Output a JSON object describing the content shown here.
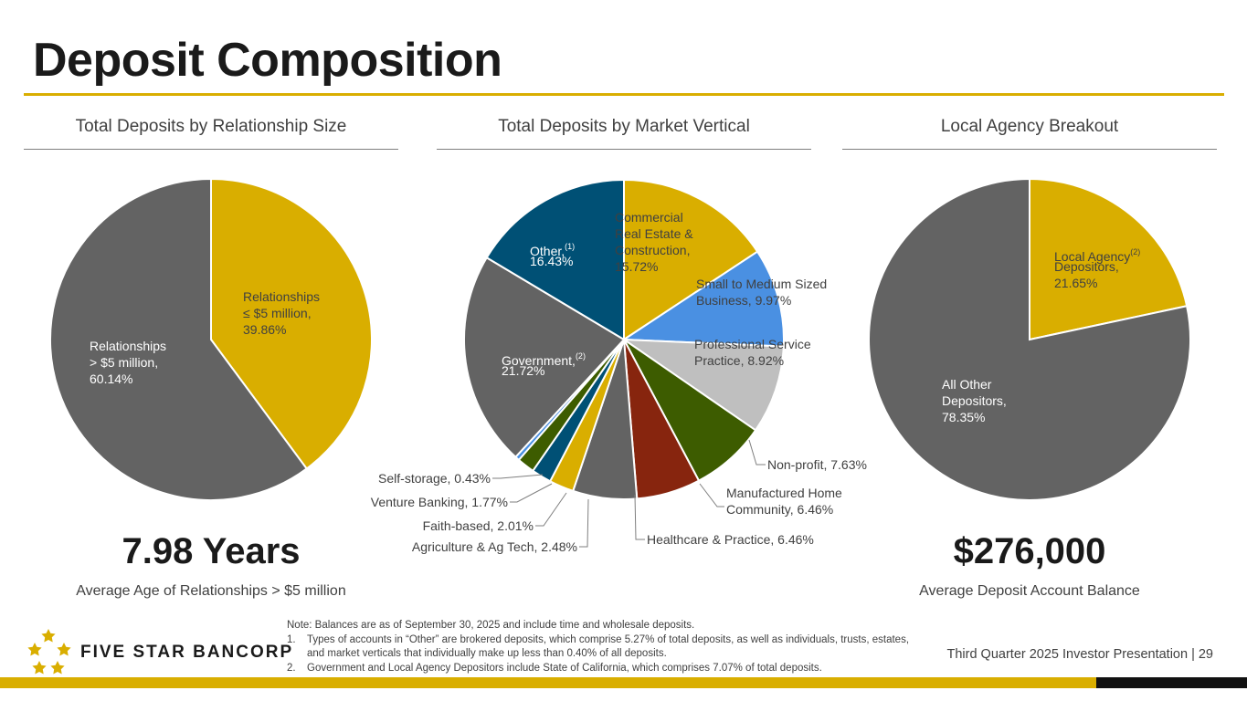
{
  "page": {
    "title": "Deposit Composition",
    "footer": "Third Quarter 2025 Investor Presentation | 29"
  },
  "colors": {
    "gold": "#d9ae00",
    "gray": "#636363",
    "navy": "#005075",
    "blue": "#4a90e2",
    "light_gray": "#bfbfbf",
    "green": "#3d5c00",
    "rust": "#87250e",
    "mid_gray": "#636363"
  },
  "logo": {
    "text": "FIVE STAR BANCORP",
    "icon": "five-stars-icon"
  },
  "notes": {
    "intro": "Note: Balances are as of September 30, 2025 and include time and wholesale deposits.",
    "items": [
      {
        "num": "1.",
        "text": "Types of accounts in “Other” are brokered deposits, which comprise 5.27% of total deposits, as well as individuals, trusts, estates, and market verticals that individually make up less than 0.40% of all deposits."
      },
      {
        "num": "2.",
        "text": "Government and Local Agency Depositors include State of California, which comprises 7.07% of total deposits."
      }
    ]
  },
  "sections": {
    "relationship": {
      "title": "Total Deposits by Relationship Size",
      "metric": "7.98 Years",
      "metric_label": "Average Age of Relationships > $5 million"
    },
    "vertical": {
      "title": "Total Deposits by Market Vertical"
    },
    "agency": {
      "title": "Local Agency Breakout",
      "metric": "$276,000",
      "metric_label": "Average Deposit Account Balance"
    }
  },
  "chart_data": [
    {
      "type": "pie",
      "title": "Total Deposits by Relationship Size",
      "unit": "%",
      "slices": [
        {
          "lines": [
            "Relationships",
            "≤ $5 million,",
            "39.86%"
          ],
          "value": 39.86,
          "color": "#d9ae00"
        },
        {
          "lines": [
            "Relationships",
            "> $5 million,",
            "60.14%"
          ],
          "value": 60.14,
          "color": "#636363"
        }
      ]
    },
    {
      "type": "pie",
      "title": "Total Deposits by Market Vertical",
      "unit": "%",
      "slices": [
        {
          "lines": [
            "Commercial",
            "Real Estate &",
            "Construction,",
            "15.72%"
          ],
          "value": 15.72,
          "color": "#d9ae00"
        },
        {
          "lines": [
            "Small to Medium Sized",
            "Business, 9.97%"
          ],
          "value": 9.97,
          "color": "#4a90e2"
        },
        {
          "lines": [
            "Professional Service",
            "Practice, 8.92%"
          ],
          "value": 8.92,
          "color": "#bfbfbf"
        },
        {
          "lines": [
            "Non-profit, 7.63%"
          ],
          "value": 7.63,
          "color": "#3d5c00"
        },
        {
          "lines": [
            "Manufactured Home",
            "Community, 6.46%"
          ],
          "value": 6.46,
          "color": "#87250e"
        },
        {
          "lines": [
            "Healthcare & Practice, 6.46%"
          ],
          "value": 6.46,
          "color": "#636363"
        },
        {
          "lines": [
            "Agriculture & Ag Tech, 2.48%"
          ],
          "value": 2.48,
          "color": "#d9ae00"
        },
        {
          "lines": [
            "Faith-based, 2.01%"
          ],
          "value": 2.01,
          "color": "#005075"
        },
        {
          "lines": [
            "Venture Banking, 1.77%"
          ],
          "value": 1.77,
          "color": "#3d5c00"
        },
        {
          "lines": [
            "Self-storage, 0.43%"
          ],
          "value": 0.43,
          "color": "#4a90e2"
        },
        {
          "lines": [
            "Government,",
            "21.72%"
          ],
          "sup": "(2)",
          "value": 21.72,
          "color": "#636363"
        },
        {
          "lines": [
            "Other,",
            "16.43%"
          ],
          "sup": "(1)",
          "value": 16.43,
          "color": "#005075"
        }
      ]
    },
    {
      "type": "pie",
      "title": "Local Agency Breakout",
      "unit": "%",
      "slices": [
        {
          "lines": [
            "Local Agency",
            "Depositors,",
            "21.65%"
          ],
          "sup": "(2)",
          "value": 21.65,
          "color": "#d9ae00"
        },
        {
          "lines": [
            "All Other",
            "Depositors,",
            "78.35%"
          ],
          "value": 78.35,
          "color": "#636363"
        }
      ]
    }
  ]
}
